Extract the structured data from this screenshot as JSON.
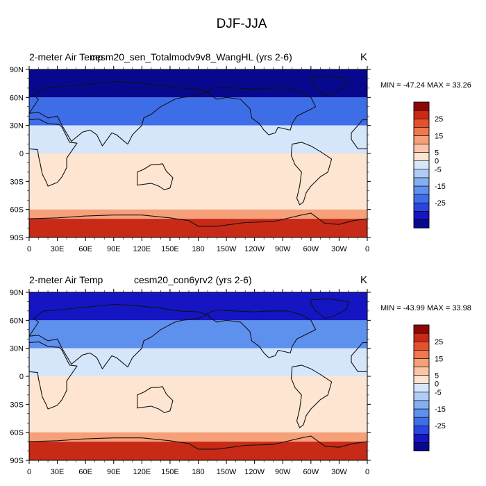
{
  "figure_title": "DJF-JJA",
  "colorbar": {
    "colors": [
      "#08088f",
      "#1515c4",
      "#2a44de",
      "#3d6ee8",
      "#5e90ee",
      "#86aef2",
      "#b0ccf6",
      "#d6e6fa",
      "#fde5d2",
      "#fbc4a6",
      "#f6a07a",
      "#f1784e",
      "#e6502d",
      "#c72a16",
      "#8d0707"
    ],
    "labels": [
      "25",
      "15",
      "5",
      "0",
      "-5",
      "-15",
      "-25"
    ],
    "bounds": [
      -30,
      30
    ]
  },
  "panels": [
    {
      "variable": "2-meter Air Temp",
      "case": "cesm20_sen_Totalmodv9v8_WangHL (yrs 2-6)",
      "units": "K",
      "stats": "MIN = -47.24 MAX =  33.26"
    },
    {
      "variable": "2-meter Air Temp",
      "case": "cesm20_con6yrv2 (yrs 2-6)",
      "units": "K",
      "stats": "MIN = -43.99 MAX =  33.98"
    }
  ],
  "axes": {
    "x_ticks": [
      "0",
      "30E",
      "60E",
      "90E",
      "120E",
      "150E",
      "180",
      "150W",
      "120W",
      "90W",
      "60W",
      "30W",
      "0"
    ],
    "y_ticks": [
      "90N",
      "60N",
      "30N",
      "0",
      "30S",
      "60S",
      "90S"
    ]
  },
  "chart_data": [
    {
      "type": "heatmap",
      "title": "2-meter Air Temp",
      "subtitle": "cesm20_sen_Totalmodv9v8_WangHL (yrs 2-6)",
      "units": "K",
      "xlim": [
        0,
        360
      ],
      "ylim": [
        -90,
        90
      ],
      "min": -47.24,
      "max": 33.26,
      "latitude_bands": [
        {
          "lat_range": [
            60,
            90
          ],
          "value": -27
        },
        {
          "lat_range": [
            30,
            60
          ],
          "value": -15
        },
        {
          "lat_range": [
            0,
            30
          ],
          "value": -2
        },
        {
          "lat_range": [
            -30,
            0
          ],
          "value": 3
        },
        {
          "lat_range": [
            -60,
            -30
          ],
          "value": 5
        },
        {
          "lat_range": [
            -70,
            -60
          ],
          "value": 12
        },
        {
          "lat_range": [
            -90,
            -70
          ],
          "value": 22
        }
      ]
    },
    {
      "type": "heatmap",
      "title": "2-meter Air Temp",
      "subtitle": "cesm20_con6yrv2 (yrs 2-6)",
      "units": "K",
      "xlim": [
        0,
        360
      ],
      "ylim": [
        -90,
        90
      ],
      "min": -43.99,
      "max": 33.98,
      "latitude_bands": [
        {
          "lat_range": [
            60,
            90
          ],
          "value": -25
        },
        {
          "lat_range": [
            30,
            60
          ],
          "value": -14
        },
        {
          "lat_range": [
            0,
            30
          ],
          "value": -2
        },
        {
          "lat_range": [
            -30,
            0
          ],
          "value": 3
        },
        {
          "lat_range": [
            -60,
            -30
          ],
          "value": 5
        },
        {
          "lat_range": [
            -70,
            -60
          ],
          "value": 12
        },
        {
          "lat_range": [
            -90,
            -70
          ],
          "value": 22
        }
      ]
    }
  ]
}
